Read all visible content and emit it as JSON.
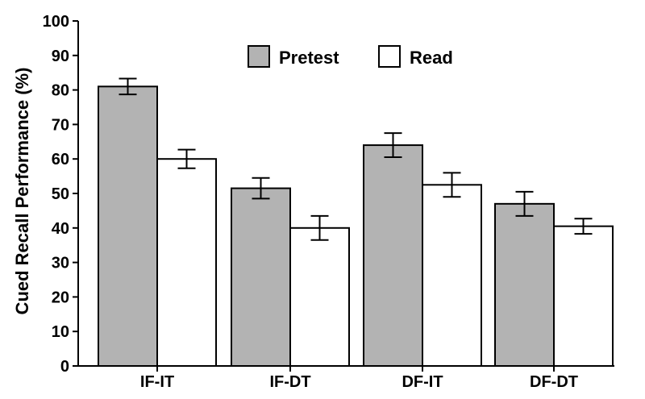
{
  "chart_data": {
    "type": "bar",
    "categories": [
      "IF-IT",
      "IF-DT",
      "DF-IT",
      "DF-DT"
    ],
    "series": [
      {
        "name": "Pretest",
        "values": [
          81,
          51.5,
          64,
          47
        ],
        "errors": [
          2.3,
          3,
          3.5,
          3.5
        ],
        "color": "#b3b3b3"
      },
      {
        "name": "Read",
        "values": [
          60,
          40,
          52.5,
          40.5
        ],
        "errors": [
          2.7,
          3.5,
          3.5,
          2.2
        ],
        "color": "#ffffff"
      }
    ],
    "xlabel": "",
    "ylabel": "Cued Recall Performance (%)",
    "ylim": [
      0,
      100
    ],
    "yticks": [
      0,
      10,
      20,
      30,
      40,
      50,
      60,
      70,
      80,
      90,
      100
    ],
    "grid": false,
    "legend_position": "top-center"
  }
}
